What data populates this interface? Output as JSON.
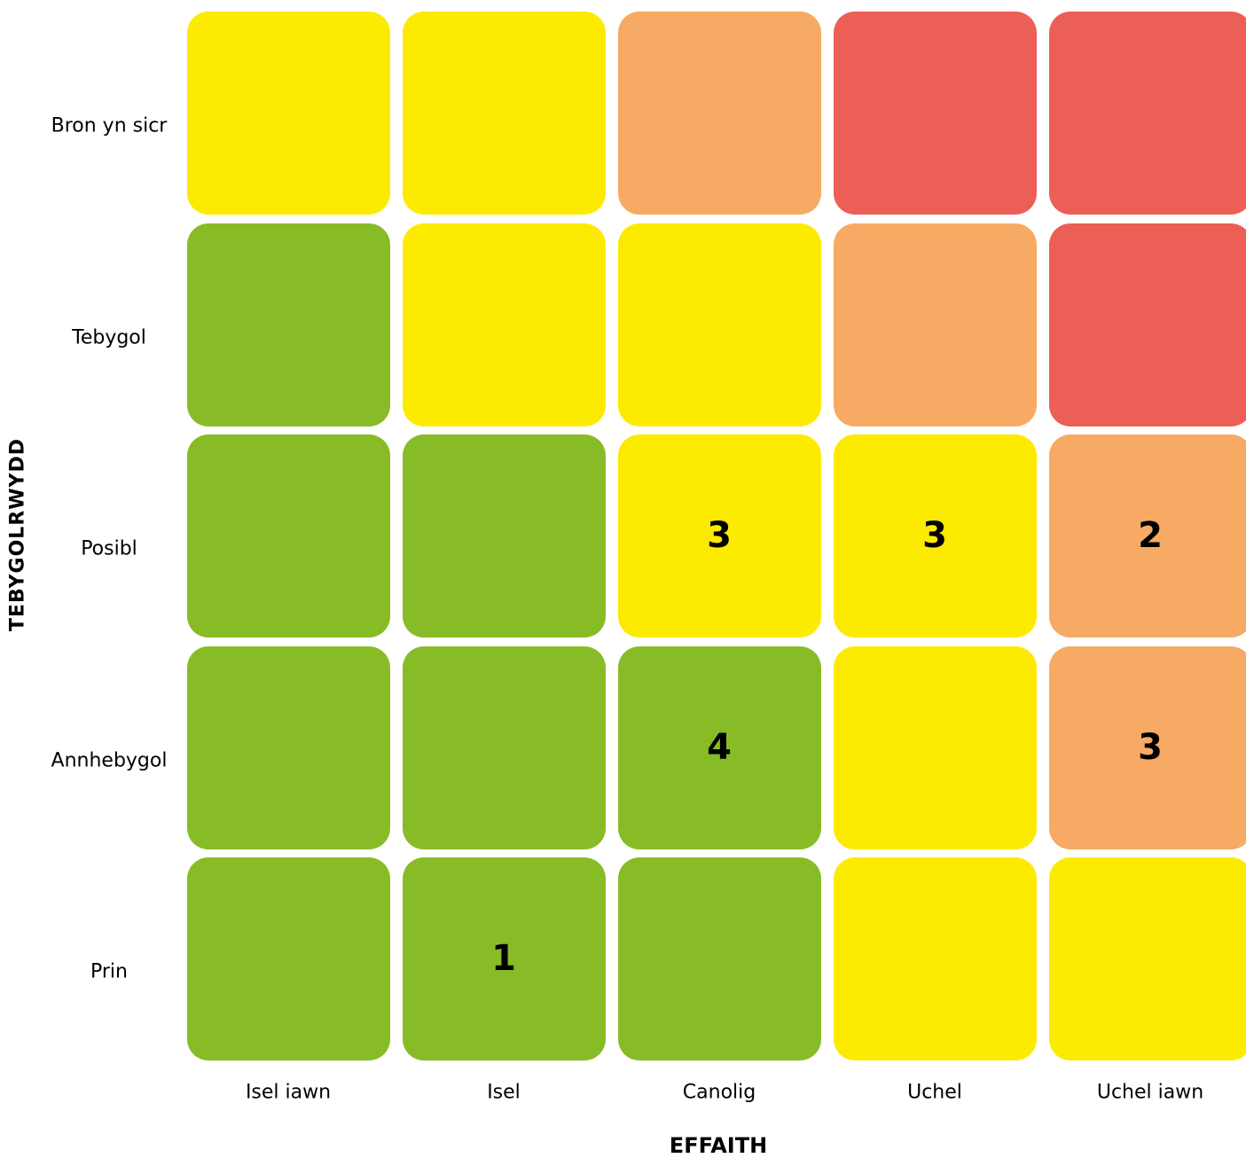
{
  "chart_data": {
    "type": "heatmap",
    "xlabel": "EFFAITH",
    "ylabel": "TEBYGOLRWYDD",
    "x_categories": [
      "Isel iawn",
      "Isel",
      "Canolig",
      "Uchel",
      "Uchel iawn"
    ],
    "y_categories": [
      "Bron yn sicr",
      "Tebygol",
      "Posibl",
      "Annhebygol",
      "Prin"
    ],
    "colors": {
      "green": "#88BC27",
      "yellow": "#FCEB00",
      "orange": "#F7AA63",
      "red": "#EB5F57"
    },
    "cell_colors": [
      [
        "yellow",
        "yellow",
        "orange",
        "red",
        "red"
      ],
      [
        "green",
        "yellow",
        "yellow",
        "orange",
        "red"
      ],
      [
        "green",
        "green",
        "yellow",
        "yellow",
        "orange"
      ],
      [
        "green",
        "green",
        "green",
        "yellow",
        "orange"
      ],
      [
        "green",
        "green",
        "green",
        "yellow",
        "yellow"
      ]
    ],
    "values": [
      [
        "",
        "",
        "",
        "",
        ""
      ],
      [
        "",
        "",
        "",
        "",
        ""
      ],
      [
        "",
        "",
        "3",
        "3",
        "2"
      ],
      [
        "",
        "",
        "4",
        "",
        "3"
      ],
      [
        "",
        "1",
        "",
        "",
        ""
      ]
    ]
  }
}
